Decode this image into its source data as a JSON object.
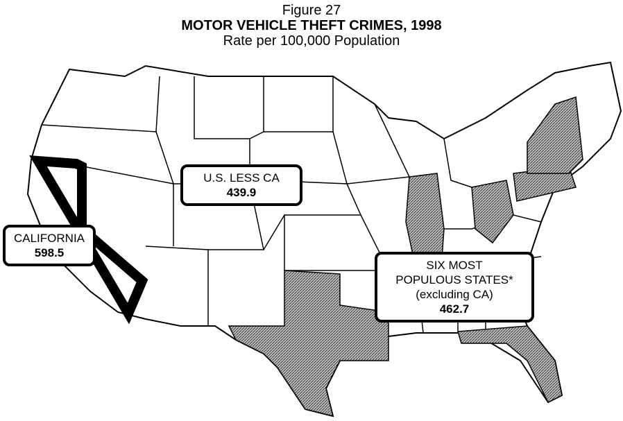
{
  "figure": "Figure 27",
  "title": "MOTOR VEHICLE THEFT CRIMES, 1998",
  "subtitle": "Rate per 100,000 Population",
  "callouts": [
    {
      "lines": [
        "CALIFORNIA"
      ],
      "value": 598.5
    },
    {
      "lines": [
        "U.S. LESS CA"
      ],
      "value": 439.9
    },
    {
      "lines": [
        "SIX MOST",
        "POPULOUS STATES*",
        "(excluding CA)"
      ],
      "value": 462.7
    }
  ]
}
